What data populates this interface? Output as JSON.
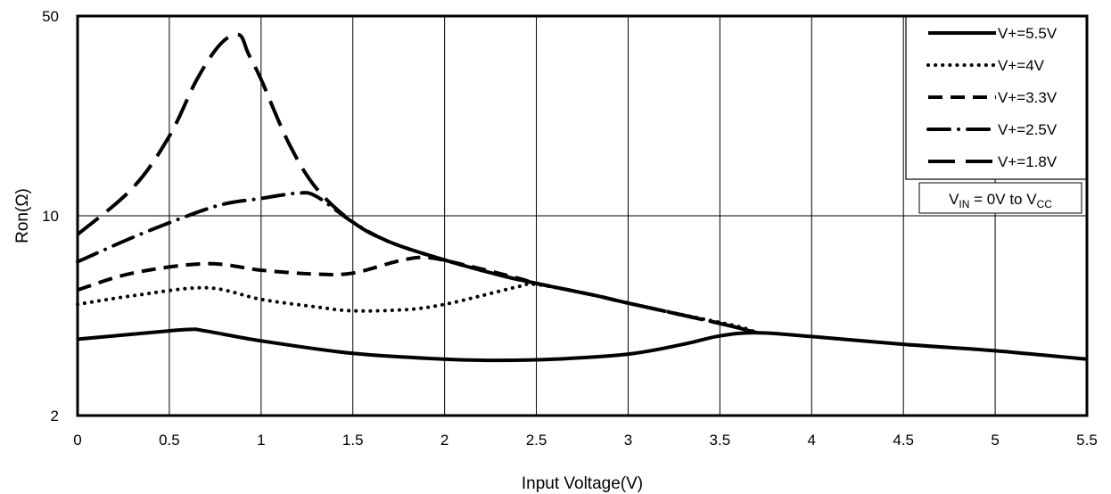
{
  "chart_data": {
    "type": "line",
    "title": "",
    "xlabel": "Input Voltage(V)",
    "ylabel": "Ron(Ω)",
    "xlim": [
      0,
      5.5
    ],
    "ylim": [
      2,
      50
    ],
    "yscale": "log",
    "grid": true,
    "legend_position": "top-right",
    "x_ticks": [
      0,
      0.5,
      1,
      1.5,
      2,
      2.5,
      3,
      3.5,
      4,
      4.5,
      5,
      5.5
    ],
    "x_tick_labels": [
      "0",
      "0.5",
      "1",
      "1.5",
      "2",
      "2.5",
      "3",
      "3.5",
      "4",
      "4.5",
      "5",
      "5.5"
    ],
    "y_ticks": [
      2,
      10,
      50
    ],
    "y_tick_labels": [
      "2",
      "10",
      "50"
    ],
    "annotation": {
      "prefix": "V",
      "sub1": "IN",
      "middle": " = 0V to V",
      "sub2": "CC"
    },
    "series": [
      {
        "name": "V+=5.5V",
        "dash": "solid",
        "points": [
          [
            0,
            3.7
          ],
          [
            0.3,
            3.85
          ],
          [
            0.6,
            4.0
          ],
          [
            0.7,
            3.95
          ],
          [
            1,
            3.65
          ],
          [
            1.5,
            3.3
          ],
          [
            2,
            3.15
          ],
          [
            2.3,
            3.12
          ],
          [
            2.6,
            3.15
          ],
          [
            3,
            3.28
          ],
          [
            3.3,
            3.55
          ],
          [
            3.5,
            3.8
          ],
          [
            3.7,
            3.9
          ],
          [
            4,
            3.78
          ],
          [
            4.5,
            3.55
          ],
          [
            5,
            3.37
          ],
          [
            5.5,
            3.15
          ]
        ]
      },
      {
        "name": "V+=4V",
        "dash": "dot",
        "points": [
          [
            0,
            4.9
          ],
          [
            0.3,
            5.25
          ],
          [
            0.7,
            5.6
          ],
          [
            1,
            5.1
          ],
          [
            1.3,
            4.8
          ],
          [
            1.5,
            4.65
          ],
          [
            1.8,
            4.7
          ],
          [
            2,
            4.9
          ],
          [
            2.2,
            5.25
          ],
          [
            2.4,
            5.65
          ],
          [
            2.5,
            5.75
          ],
          [
            2.8,
            5.3
          ],
          [
            3,
            4.95
          ],
          [
            3.3,
            4.5
          ],
          [
            3.6,
            4.1
          ],
          [
            3.7,
            3.9
          ]
        ]
      },
      {
        "name": "V+=3.3V",
        "dash": "dash",
        "points": [
          [
            0,
            5.5
          ],
          [
            0.3,
            6.3
          ],
          [
            0.7,
            6.8
          ],
          [
            1,
            6.45
          ],
          [
            1.3,
            6.25
          ],
          [
            1.5,
            6.3
          ],
          [
            1.75,
            6.95
          ],
          [
            1.9,
            7.15
          ],
          [
            2.1,
            6.75
          ],
          [
            2.4,
            6.05
          ],
          [
            2.5,
            5.8
          ],
          [
            2.8,
            5.3
          ],
          [
            3,
            4.95
          ],
          [
            3.5,
            4.2
          ],
          [
            3.7,
            3.9
          ]
        ]
      },
      {
        "name": "V+=2.5V",
        "dash": "dashdot",
        "points": [
          [
            0,
            6.9
          ],
          [
            0.3,
            8.4
          ],
          [
            0.6,
            10.0
          ],
          [
            0.8,
            11.0
          ],
          [
            1,
            11.5
          ],
          [
            1.2,
            12.0
          ],
          [
            1.3,
            11.7
          ],
          [
            1.5,
            9.5
          ],
          [
            1.7,
            8.1
          ],
          [
            2,
            7.0
          ],
          [
            2.3,
            6.2
          ],
          [
            2.5,
            5.8
          ],
          [
            2.8,
            5.3
          ],
          [
            3,
            4.95
          ],
          [
            3.5,
            4.2
          ],
          [
            3.7,
            3.9
          ]
        ]
      },
      {
        "name": "V+=1.8V",
        "dash": "longdash",
        "points": [
          [
            0,
            8.6
          ],
          [
            0.3,
            12.5
          ],
          [
            0.5,
            19
          ],
          [
            0.65,
            30
          ],
          [
            0.78,
            40
          ],
          [
            0.88,
            43
          ],
          [
            0.93,
            37
          ],
          [
            1.0,
            30
          ],
          [
            1.15,
            18
          ],
          [
            1.3,
            12.5
          ],
          [
            1.5,
            9.5
          ],
          [
            1.7,
            8.1
          ],
          [
            2,
            7.0
          ],
          [
            2.3,
            6.2
          ],
          [
            2.5,
            5.8
          ],
          [
            2.8,
            5.3
          ],
          [
            3,
            4.95
          ],
          [
            3.5,
            4.2
          ],
          [
            3.7,
            3.9
          ]
        ]
      }
    ]
  }
}
